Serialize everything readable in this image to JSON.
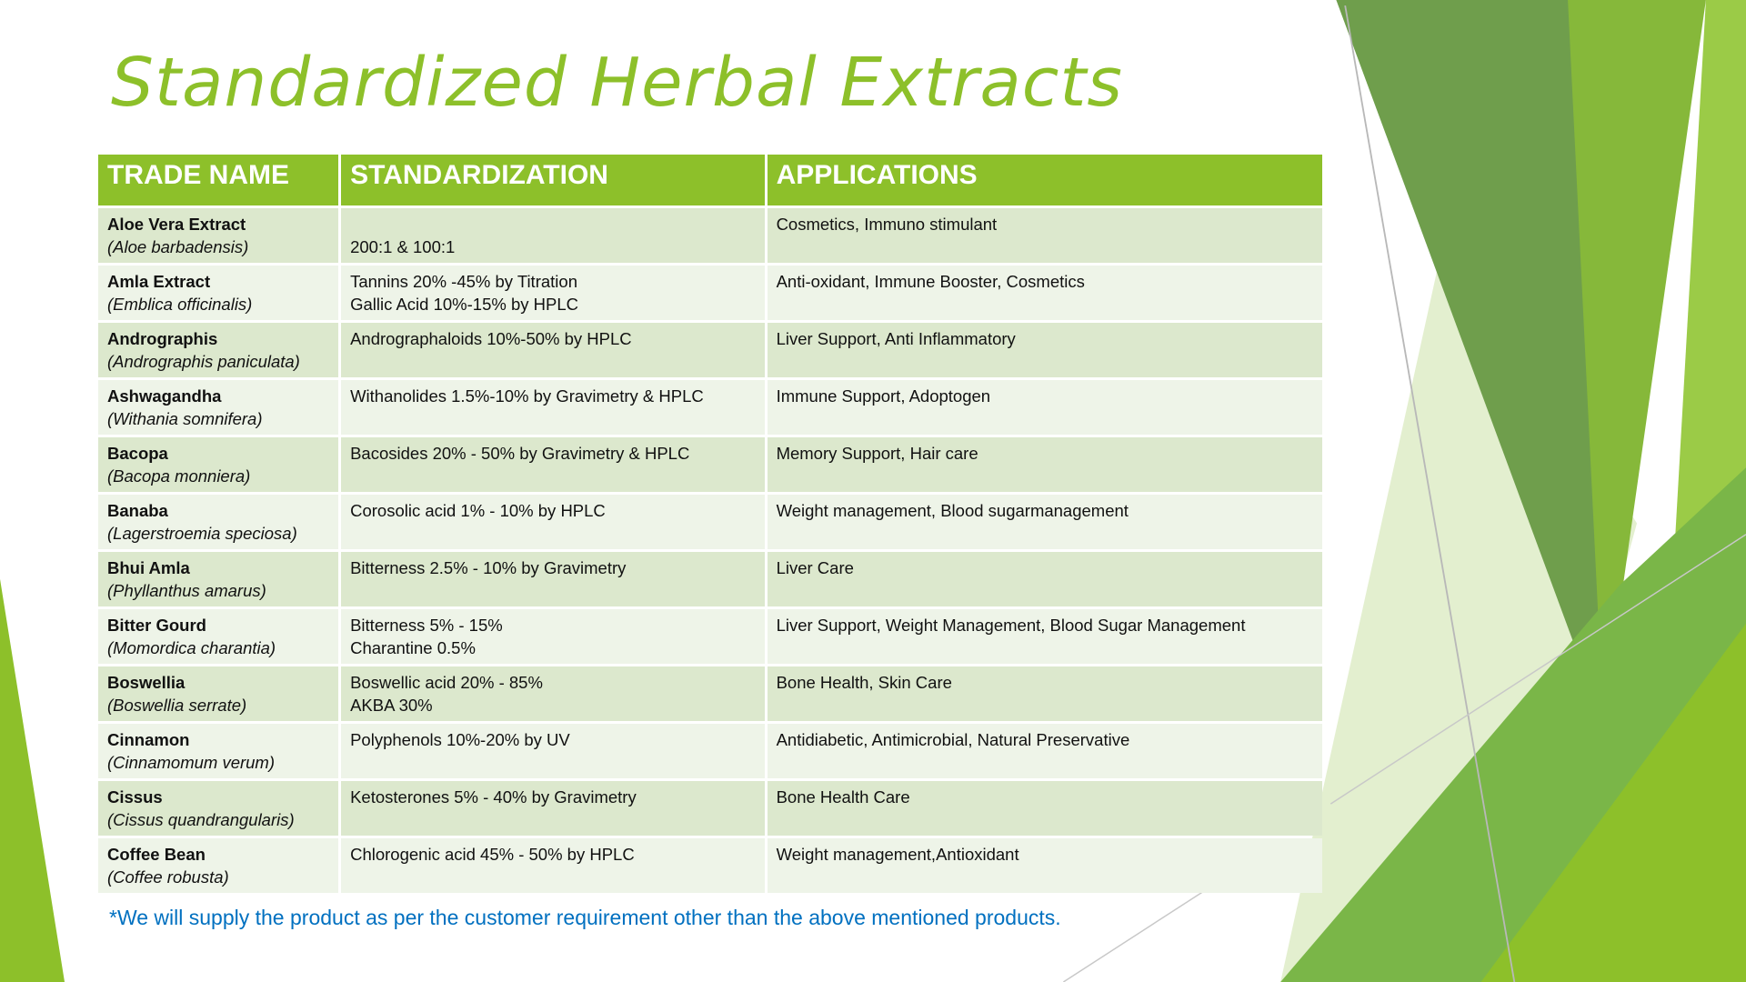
{
  "title": "Standardized Herbal Extracts",
  "colors": {
    "accent": "#8dc02a",
    "row_odd": "#dce8cd",
    "row_even": "#eef4e8",
    "note": "#0070c0"
  },
  "table": {
    "headers": [
      "TRADE NAME",
      "STANDARDIZATION",
      "APPLICATIONS"
    ],
    "rows": [
      {
        "name": "Aloe Vera Extract",
        "scientific": "(Aloe barbadensis)",
        "standardization": [
          "200:1 & 100:1"
        ],
        "applications": "Cosmetics, Immuno stimulant"
      },
      {
        "name": "Amla Extract",
        "scientific": "(Emblica officinalis)",
        "standardization": [
          "Tannins 20% -45% by Titration",
          "Gallic Acid 10%-15% by HPLC"
        ],
        "applications": "Anti-oxidant, Immune Booster, Cosmetics"
      },
      {
        "name": "Andrographis",
        "scientific": "(Andrographis paniculata)",
        "standardization": [
          "Andrographaloids 10%-50% by HPLC"
        ],
        "applications": "Liver Support, Anti Inflammatory"
      },
      {
        "name": "Ashwagandha",
        "scientific": "(Withania somnifera)",
        "standardization": [
          "Withanolides 1.5%-10% by Gravimetry & HPLC"
        ],
        "applications": "Immune Support, Adoptogen"
      },
      {
        "name": "Bacopa",
        "scientific": "(Bacopa monniera)",
        "standardization": [
          "Bacosides 20% - 50% by Gravimetry & HPLC"
        ],
        "applications": "Memory Support, Hair care"
      },
      {
        "name": "Banaba",
        "scientific": "(Lagerstroemia speciosa)",
        "standardization": [
          "Corosolic acid 1% - 10% by HPLC"
        ],
        "applications": "Weight management, Blood sugarmanagement"
      },
      {
        "name": "Bhui Amla",
        "scientific": "(Phyllanthus amarus)",
        "standardization": [
          "Bitterness  2.5% - 10% by Gravimetry"
        ],
        "applications": "Liver Care"
      },
      {
        "name": "Bitter Gourd",
        "scientific": "(Momordica charantia)",
        "standardization": [
          "Bitterness  5% - 15%",
          "Charantine 0.5%"
        ],
        "applications": "Liver Support, Weight Management, Blood Sugar Management"
      },
      {
        "name": "Boswellia",
        "scientific": "(Boswellia serrate)",
        "standardization": [
          "Boswellic acid 20% - 85%",
          "AKBA 30%"
        ],
        "applications": "Bone Health, Skin Care"
      },
      {
        "name": "Cinnamon",
        "scientific": "(Cinnamomum verum)",
        "standardization": [
          "Polyphenols 10%-20% by UV"
        ],
        "applications": "Antidiabetic, Antimicrobial, Natural Preservative"
      },
      {
        "name": "Cissus",
        "scientific": "(Cissus quandrangularis)",
        "standardization": [
          "Ketosterones 5% - 40% by Gravimetry"
        ],
        "applications": "Bone Health Care"
      },
      {
        "name": "Coffee Bean",
        "scientific": "(Coffee robusta)",
        "standardization": [
          "Chlorogenic acid 45% - 50% by HPLC"
        ],
        "applications": "Weight management,Antioxidant"
      }
    ]
  },
  "footnote": "*We will supply the product as per the customer requirement other than the above mentioned products."
}
